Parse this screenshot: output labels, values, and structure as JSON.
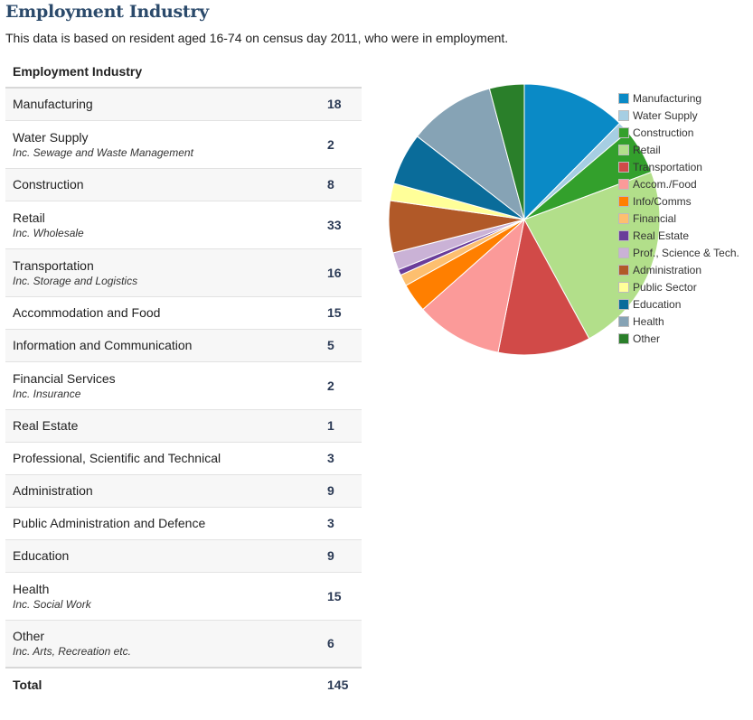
{
  "header": {
    "title": "Employment Industry",
    "subtitle": "This data is based on resident aged 16-74 on census day 2011, who were in employment."
  },
  "table": {
    "header": "Employment Industry",
    "rows": [
      {
        "label": "Manufacturing",
        "sub": "",
        "value": "18"
      },
      {
        "label": "Water Supply",
        "sub": "Inc. Sewage and Waste Management",
        "value": "2"
      },
      {
        "label": "Construction",
        "sub": "",
        "value": "8"
      },
      {
        "label": "Retail",
        "sub": "Inc. Wholesale",
        "value": "33"
      },
      {
        "label": "Transportation",
        "sub": "Inc. Storage and Logistics",
        "value": "16"
      },
      {
        "label": "Accommodation and Food",
        "sub": "",
        "value": "15"
      },
      {
        "label": "Information and Communication",
        "sub": "",
        "value": "5"
      },
      {
        "label": "Financial Services",
        "sub": "Inc. Insurance",
        "value": "2"
      },
      {
        "label": "Real Estate",
        "sub": "",
        "value": "1"
      },
      {
        "label": "Professional, Scientific and Technical",
        "sub": "",
        "value": "3"
      },
      {
        "label": "Administration",
        "sub": "",
        "value": "9"
      },
      {
        "label": "Public Administration and Defence",
        "sub": "",
        "value": "3"
      },
      {
        "label": "Education",
        "sub": "",
        "value": "9"
      },
      {
        "label": "Health",
        "sub": "Inc. Social Work",
        "value": "15"
      },
      {
        "label": "Other",
        "sub": "Inc. Arts, Recreation etc.",
        "value": "6"
      }
    ],
    "total_label": "Total",
    "total_value": "145"
  },
  "chart_data": {
    "type": "pie",
    "title": "",
    "legend_position": "right",
    "categories": [
      "Manufacturing",
      "Water Supply",
      "Construction",
      "Retail",
      "Transportation",
      "Accom./Food",
      "Info/Comms",
      "Financial",
      "Real Estate",
      "Prof., Science & Tech.",
      "Administration",
      "Public Sector",
      "Education",
      "Health",
      "Other"
    ],
    "values": [
      18,
      2,
      8,
      33,
      16,
      15,
      5,
      2,
      1,
      3,
      9,
      3,
      9,
      15,
      6
    ],
    "colors": [
      "#0a8ac6",
      "#a6cee3",
      "#33a02c",
      "#b2df8a",
      "#d14a48",
      "#fb9a99",
      "#ff7f00",
      "#fdbf6f",
      "#6a3d9a",
      "#cab2d6",
      "#b15928",
      "#ffff99",
      "#0a6c9a",
      "#86a3b5",
      "#2a7f2a"
    ]
  }
}
